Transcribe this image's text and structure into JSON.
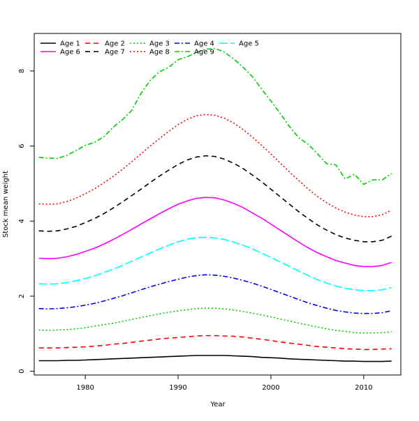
{
  "chart_data": {
    "type": "line",
    "title": "",
    "xlabel": "Year",
    "ylabel": "Stock mean weight",
    "xlim": [
      1974.5,
      2014
    ],
    "ylim": [
      -0.1,
      9.0
    ],
    "xticks": [
      1980,
      1990,
      2000,
      2010
    ],
    "yticks": [
      0,
      2,
      4,
      6,
      8
    ],
    "grid": false,
    "legend_position": "top-left",
    "years": [
      1975,
      1976,
      1977,
      1978,
      1979,
      1980,
      1981,
      1982,
      1983,
      1984,
      1985,
      1986,
      1987,
      1988,
      1989,
      1990,
      1991,
      1992,
      1993,
      1994,
      1995,
      1996,
      1997,
      1998,
      1999,
      2000,
      2001,
      2002,
      2003,
      2004,
      2005,
      2006,
      2007,
      2008,
      2009,
      2010,
      2011,
      2012,
      2013
    ],
    "series": [
      {
        "name": "Age 1",
        "color": "#000000",
        "dash": "solid",
        "values": [
          0.28,
          0.28,
          0.28,
          0.29,
          0.29,
          0.3,
          0.31,
          0.32,
          0.33,
          0.34,
          0.35,
          0.36,
          0.37,
          0.38,
          0.39,
          0.4,
          0.41,
          0.42,
          0.42,
          0.42,
          0.42,
          0.41,
          0.4,
          0.39,
          0.37,
          0.36,
          0.35,
          0.33,
          0.32,
          0.31,
          0.3,
          0.29,
          0.28,
          0.27,
          0.27,
          0.26,
          0.26,
          0.26,
          0.27
        ]
      },
      {
        "name": "Age 2",
        "color": "#ff0000",
        "dash": "dashed",
        "values": [
          0.62,
          0.62,
          0.62,
          0.63,
          0.64,
          0.65,
          0.67,
          0.69,
          0.72,
          0.74,
          0.77,
          0.8,
          0.83,
          0.86,
          0.88,
          0.9,
          0.92,
          0.94,
          0.95,
          0.95,
          0.94,
          0.93,
          0.91,
          0.88,
          0.85,
          0.82,
          0.78,
          0.75,
          0.72,
          0.69,
          0.66,
          0.64,
          0.62,
          0.6,
          0.59,
          0.58,
          0.58,
          0.59,
          0.6
        ]
      },
      {
        "name": "Age 3",
        "color": "#00cd00",
        "dash": "dotted",
        "values": [
          1.1,
          1.09,
          1.1,
          1.11,
          1.13,
          1.16,
          1.2,
          1.24,
          1.28,
          1.33,
          1.38,
          1.43,
          1.48,
          1.53,
          1.57,
          1.61,
          1.64,
          1.67,
          1.68,
          1.68,
          1.66,
          1.63,
          1.59,
          1.55,
          1.5,
          1.45,
          1.39,
          1.34,
          1.28,
          1.23,
          1.18,
          1.13,
          1.09,
          1.06,
          1.03,
          1.02,
          1.02,
          1.03,
          1.05
        ]
      },
      {
        "name": "Age 4",
        "color": "#0000ff",
        "dash": "dashdot",
        "values": [
          1.67,
          1.66,
          1.67,
          1.69,
          1.72,
          1.76,
          1.81,
          1.87,
          1.94,
          2.01,
          2.09,
          2.17,
          2.25,
          2.32,
          2.39,
          2.45,
          2.51,
          2.55,
          2.57,
          2.56,
          2.53,
          2.48,
          2.42,
          2.35,
          2.27,
          2.18,
          2.09,
          2.0,
          1.91,
          1.82,
          1.75,
          1.68,
          1.62,
          1.58,
          1.55,
          1.54,
          1.54,
          1.56,
          1.61
        ]
      },
      {
        "name": "Age 5",
        "color": "#00ffff",
        "dash": "longdash",
        "values": [
          2.33,
          2.32,
          2.33,
          2.36,
          2.41,
          2.47,
          2.54,
          2.63,
          2.72,
          2.82,
          2.93,
          3.04,
          3.15,
          3.26,
          3.36,
          3.45,
          3.52,
          3.56,
          3.57,
          3.55,
          3.51,
          3.44,
          3.36,
          3.26,
          3.15,
          3.03,
          2.91,
          2.79,
          2.67,
          2.55,
          2.44,
          2.35,
          2.27,
          2.21,
          2.17,
          2.15,
          2.15,
          2.17,
          2.23
        ]
      },
      {
        "name": "Age 6",
        "color": "#ff00ff",
        "dash": "solid",
        "values": [
          3.01,
          3.0,
          3.01,
          3.05,
          3.11,
          3.19,
          3.28,
          3.39,
          3.51,
          3.64,
          3.78,
          3.92,
          4.06,
          4.2,
          4.33,
          4.45,
          4.54,
          4.61,
          4.63,
          4.62,
          4.56,
          4.47,
          4.36,
          4.22,
          4.08,
          3.92,
          3.76,
          3.6,
          3.44,
          3.29,
          3.16,
          3.05,
          2.95,
          2.88,
          2.82,
          2.79,
          2.79,
          2.82,
          2.9
        ]
      },
      {
        "name": "Age 7",
        "color": "#000000",
        "dash": "dashed",
        "values": [
          3.74,
          3.73,
          3.74,
          3.79,
          3.86,
          3.96,
          4.07,
          4.2,
          4.35,
          4.51,
          4.68,
          4.85,
          5.03,
          5.2,
          5.36,
          5.51,
          5.63,
          5.71,
          5.74,
          5.72,
          5.65,
          5.54,
          5.4,
          5.23,
          5.05,
          4.85,
          4.65,
          4.45,
          4.25,
          4.07,
          3.9,
          3.76,
          3.64,
          3.55,
          3.49,
          3.45,
          3.45,
          3.49,
          3.6
        ]
      },
      {
        "name": "Age 8",
        "color": "#ff0000",
        "dash": "dotted",
        "values": [
          4.46,
          4.45,
          4.46,
          4.52,
          4.61,
          4.73,
          4.86,
          5.02,
          5.19,
          5.38,
          5.58,
          5.79,
          6.0,
          6.2,
          6.39,
          6.57,
          6.71,
          6.81,
          6.84,
          6.82,
          6.74,
          6.61,
          6.44,
          6.24,
          6.02,
          5.79,
          5.55,
          5.31,
          5.08,
          4.86,
          4.66,
          4.49,
          4.35,
          4.24,
          4.16,
          4.12,
          4.12,
          4.17,
          4.29
        ]
      },
      {
        "name": "Age 9",
        "color": "#00cd00",
        "dash": "dashdot",
        "values": [
          5.7,
          5.68,
          5.67,
          5.75,
          5.88,
          6.02,
          6.1,
          6.25,
          6.5,
          6.7,
          6.95,
          7.4,
          7.75,
          7.98,
          8.1,
          8.3,
          8.38,
          8.5,
          8.58,
          8.6,
          8.5,
          8.32,
          8.1,
          7.85,
          7.52,
          7.2,
          6.87,
          6.52,
          6.22,
          6.05,
          5.8,
          5.53,
          5.5,
          5.12,
          5.25,
          4.98,
          5.1,
          5.1,
          5.27
        ]
      }
    ]
  }
}
